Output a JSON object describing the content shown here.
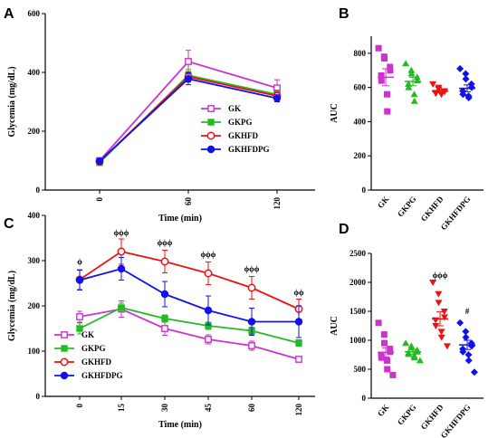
{
  "panels": {
    "A": "A",
    "B": "B",
    "C": "C",
    "D": "D"
  },
  "chart_data": [
    {
      "id": "A",
      "type": "line",
      "xlabel": "Time (min)",
      "ylabel": "Glycemia (mg/dL)",
      "x": [
        0,
        60,
        120
      ],
      "x_ticks": [
        "0",
        "60",
        "120"
      ],
      "ylim": [
        0,
        600
      ],
      "y_ticks": [
        "0",
        "200",
        "400",
        "600"
      ],
      "legend_position": "lower-right",
      "series": [
        {
          "name": "GK",
          "color": "#cc33cc",
          "marker": "square-open",
          "values": [
            100,
            437,
            347
          ],
          "errors": [
            6,
            38,
            28
          ]
        },
        {
          "name": "GKPG",
          "color": "#22bb22",
          "marker": "square-filled",
          "values": [
            93,
            390,
            325
          ],
          "errors": [
            5,
            20,
            15
          ]
        },
        {
          "name": "GKHFD",
          "color": "#ee1111",
          "marker": "circle-open",
          "values": [
            97,
            385,
            320
          ],
          "errors": [
            5,
            18,
            12
          ]
        },
        {
          "name": "GKHFDPG",
          "color": "#1111ee",
          "marker": "circle-filled",
          "values": [
            98,
            378,
            312
          ],
          "errors": [
            5,
            20,
            12
          ]
        }
      ]
    },
    {
      "id": "B",
      "type": "scatter",
      "ylabel": "AUC",
      "categories": [
        "GK",
        "GKPG",
        "GKHFD",
        "GKHFDPG"
      ],
      "ylim": [
        0,
        900
      ],
      "y_ticks": [
        "0",
        "200",
        "400",
        "600",
        "800"
      ],
      "groups": [
        {
          "name": "GK",
          "color": "#cc33cc",
          "marker": "square",
          "mean": 660,
          "sem": 50,
          "points": [
            830,
            780,
            770,
            720,
            700,
            670,
            640,
            560,
            460
          ]
        },
        {
          "name": "GKPG",
          "color": "#22bb22",
          "marker": "triangle-up",
          "mean": 635,
          "sem": 25,
          "points": [
            740,
            700,
            680,
            660,
            640,
            620,
            600,
            560,
            520
          ]
        },
        {
          "name": "GKHFD",
          "color": "#ee1111",
          "marker": "triangle-down",
          "mean": 578,
          "sem": 8,
          "points": [
            620,
            600,
            590,
            580,
            575,
            570,
            565,
            560
          ]
        },
        {
          "name": "GKHFDPG",
          "color": "#1111ee",
          "marker": "diamond",
          "mean": 595,
          "sem": 20,
          "points": [
            710,
            680,
            650,
            620,
            600,
            580,
            560,
            550,
            540
          ]
        }
      ]
    },
    {
      "id": "C",
      "type": "line",
      "xlabel": "Time (min)",
      "ylabel": "Glycemia (mg/dL)",
      "x_ticks": [
        "0",
        "15",
        "30",
        "45",
        "60",
        "120"
      ],
      "ylim": [
        0,
        400
      ],
      "y_ticks": [
        "0",
        "100",
        "200",
        "300",
        "400"
      ],
      "legend_position": "lower-left",
      "annotations": [
        "ϕ",
        "ϕϕϕ",
        "ϕϕϕ",
        "ϕϕϕ",
        "ϕϕϕ",
        "ϕϕ"
      ],
      "series": [
        {
          "name": "GK",
          "color": "#cc33cc",
          "marker": "square-open",
          "values": [
            176,
            193,
            150,
            126,
            112,
            82
          ],
          "errors": [
            12,
            18,
            15,
            10,
            10,
            5
          ]
        },
        {
          "name": "GKPG",
          "color": "#22bb22",
          "marker": "square-filled",
          "values": [
            150,
            196,
            172,
            156,
            145,
            118
          ],
          "errors": [
            12,
            10,
            8,
            8,
            8,
            7
          ]
        },
        {
          "name": "GKHFD",
          "color": "#ee1111",
          "marker": "circle-open",
          "values": [
            258,
            320,
            298,
            272,
            240,
            193
          ],
          "errors": [
            22,
            28,
            25,
            25,
            25,
            22
          ]
        },
        {
          "name": "GKHFDPG",
          "color": "#1111ee",
          "marker": "circle-filled",
          "values": [
            257,
            282,
            226,
            190,
            165,
            165
          ],
          "errors": [
            22,
            25,
            28,
            32,
            30,
            35
          ]
        }
      ]
    },
    {
      "id": "D",
      "type": "scatter",
      "ylabel": "AUC",
      "categories": [
        "GK",
        "GKPG",
        "GKHFD",
        "GKHFDPG"
      ],
      "ylim": [
        0,
        2500
      ],
      "y_ticks": [
        "0",
        "500",
        "1000",
        "1500",
        "2000",
        "2500"
      ],
      "annotations": [
        {
          "category": "GKHFD",
          "text": "ϕϕϕ"
        },
        {
          "category": "GKHFDPG",
          "text": "#"
        }
      ],
      "groups": [
        {
          "name": "GK",
          "color": "#cc33cc",
          "marker": "square",
          "mean": 790,
          "sem": 80,
          "points": [
            1300,
            1100,
            950,
            850,
            800,
            750,
            700,
            650,
            500,
            400
          ]
        },
        {
          "name": "GKPG",
          "color": "#22bb22",
          "marker": "triangle-up",
          "mean": 800,
          "sem": 40,
          "points": [
            950,
            900,
            870,
            830,
            800,
            780,
            760,
            730,
            700,
            650
          ]
        },
        {
          "name": "GKHFD",
          "color": "#ee1111",
          "marker": "triangle-down",
          "mean": 1370,
          "sem": 120,
          "points": [
            2000,
            1800,
            1650,
            1500,
            1400,
            1350,
            1250,
            1150,
            1050,
            900
          ]
        },
        {
          "name": "GKHFDPG",
          "color": "#1111ee",
          "marker": "diamond",
          "mean": 920,
          "sem": 80,
          "points": [
            1300,
            1150,
            1050,
            950,
            900,
            850,
            800,
            750,
            650,
            450
          ]
        }
      ]
    }
  ]
}
